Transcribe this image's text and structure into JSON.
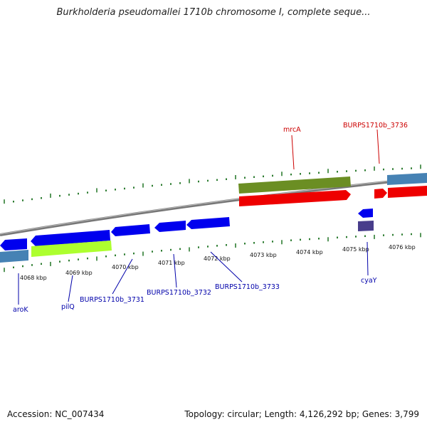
{
  "title": "Burkholderia pseudomallei 1710b chromosome I, complete seque...",
  "footer": {
    "accession": "Accession: NC_007434",
    "topology": "Topology: circular; Length: 4,126,292 bp; Genes: 3,799"
  },
  "colors": {
    "label_blue": "#0000aa",
    "label_red": "#cc0000",
    "tick_green": "#2e7d32",
    "gene_blue": "#0000ee",
    "gene_red": "#ee0000",
    "gene_olive": "#6b8e23",
    "gene_lime": "#adff2f",
    "gene_steel": "#4682b4",
    "gene_slate": "#483d8b",
    "backbone": "#888888"
  },
  "kbp_labels": [
    "4068 kbp",
    "4069 kbp",
    "4070 kbp",
    "4071 kbp",
    "4072 kbp",
    "4073 kbp",
    "4074 kbp",
    "4075 kbp",
    "4076 kbp"
  ],
  "gene_labels": {
    "mrcA": "mrcA",
    "burps3736": "BURPS1710b_3736",
    "aroK": "aroK",
    "pilQ": "pilQ",
    "burps3731": "BURPS1710b_3731",
    "burps3732": "BURPS1710b_3732",
    "burps3733": "BURPS1710b_3733",
    "cyaY": "cyaY"
  }
}
